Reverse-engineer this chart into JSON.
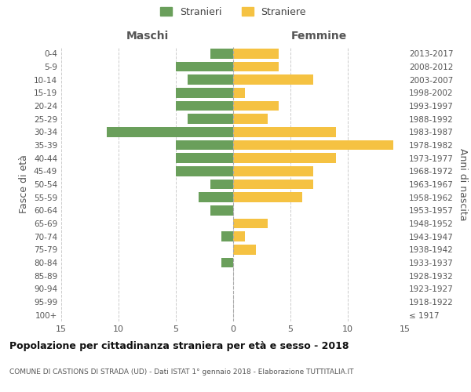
{
  "age_groups": [
    "100+",
    "95-99",
    "90-94",
    "85-89",
    "80-84",
    "75-79",
    "70-74",
    "65-69",
    "60-64",
    "55-59",
    "50-54",
    "45-49",
    "40-44",
    "35-39",
    "30-34",
    "25-29",
    "20-24",
    "15-19",
    "10-14",
    "5-9",
    "0-4"
  ],
  "birth_years": [
    "≤ 1917",
    "1918-1922",
    "1923-1927",
    "1928-1932",
    "1933-1937",
    "1938-1942",
    "1943-1947",
    "1948-1952",
    "1953-1957",
    "1958-1962",
    "1963-1967",
    "1968-1972",
    "1973-1977",
    "1978-1982",
    "1983-1987",
    "1988-1992",
    "1993-1997",
    "1998-2002",
    "2003-2007",
    "2008-2012",
    "2013-2017"
  ],
  "maschi": [
    0,
    0,
    0,
    0,
    1,
    0,
    1,
    0,
    2,
    3,
    2,
    5,
    5,
    5,
    11,
    4,
    5,
    5,
    4,
    5,
    2
  ],
  "femmine": [
    0,
    0,
    0,
    0,
    0,
    2,
    1,
    3,
    0,
    6,
    7,
    7,
    9,
    14,
    9,
    3,
    4,
    1,
    7,
    4,
    4
  ],
  "maschi_color": "#6a9f5b",
  "femmine_color": "#f5c242",
  "title": "Popolazione per cittadinanza straniera per età e sesso - 2018",
  "subtitle": "COMUNE DI CASTIONS DI STRADA (UD) - Dati ISTAT 1° gennaio 2018 - Elaborazione TUTTITALIA.IT",
  "legend_maschi": "Stranieri",
  "legend_femmine": "Straniere",
  "header_left": "Maschi",
  "header_right": "Femmine",
  "ylabel": "Fasce di età",
  "ylabel_right": "Anni di nascita",
  "xlim": 15,
  "background_color": "#ffffff",
  "grid_color": "#cccccc",
  "bar_height": 0.75
}
